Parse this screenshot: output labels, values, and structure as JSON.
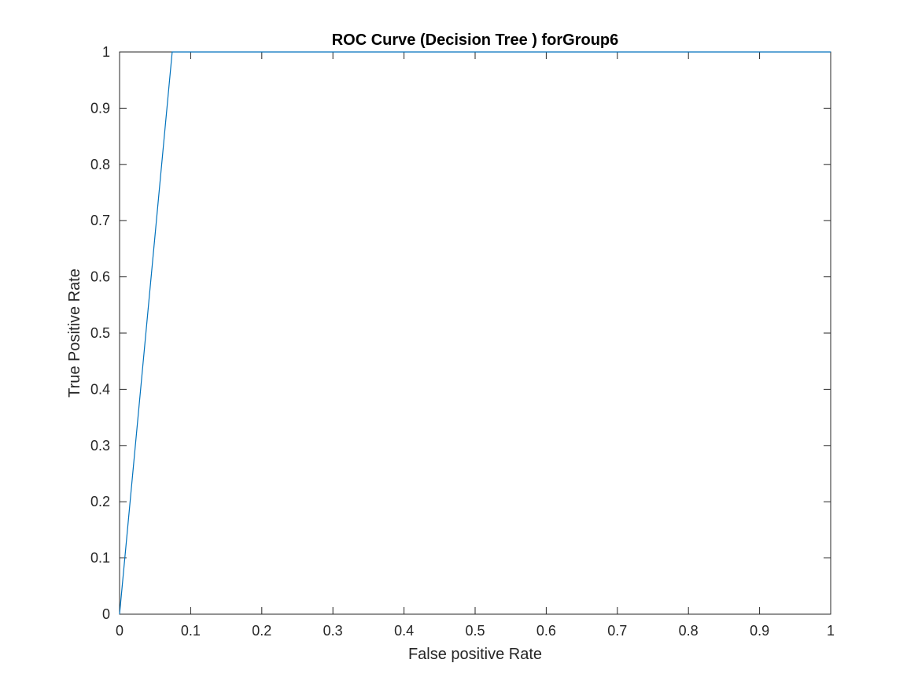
{
  "chart_data": {
    "type": "line",
    "title": "ROC Curve (Decision Tree ) forGroup6",
    "xlabel": "False positive Rate",
    "ylabel": "True Positive Rate",
    "xlim": [
      0,
      1
    ],
    "ylim": [
      0,
      1
    ],
    "xticks": [
      "0",
      "0.1",
      "0.2",
      "0.3",
      "0.4",
      "0.5",
      "0.6",
      "0.7",
      "0.8",
      "0.9",
      "1"
    ],
    "yticks": [
      "0",
      "0.1",
      "0.2",
      "0.3",
      "0.4",
      "0.5",
      "0.6",
      "0.7",
      "0.8",
      "0.9",
      "1"
    ],
    "grid": false,
    "series": [
      {
        "name": "ROC",
        "color": "#0072BD",
        "x": [
          0,
          0.074,
          1
        ],
        "y": [
          0,
          1,
          1
        ]
      }
    ]
  }
}
